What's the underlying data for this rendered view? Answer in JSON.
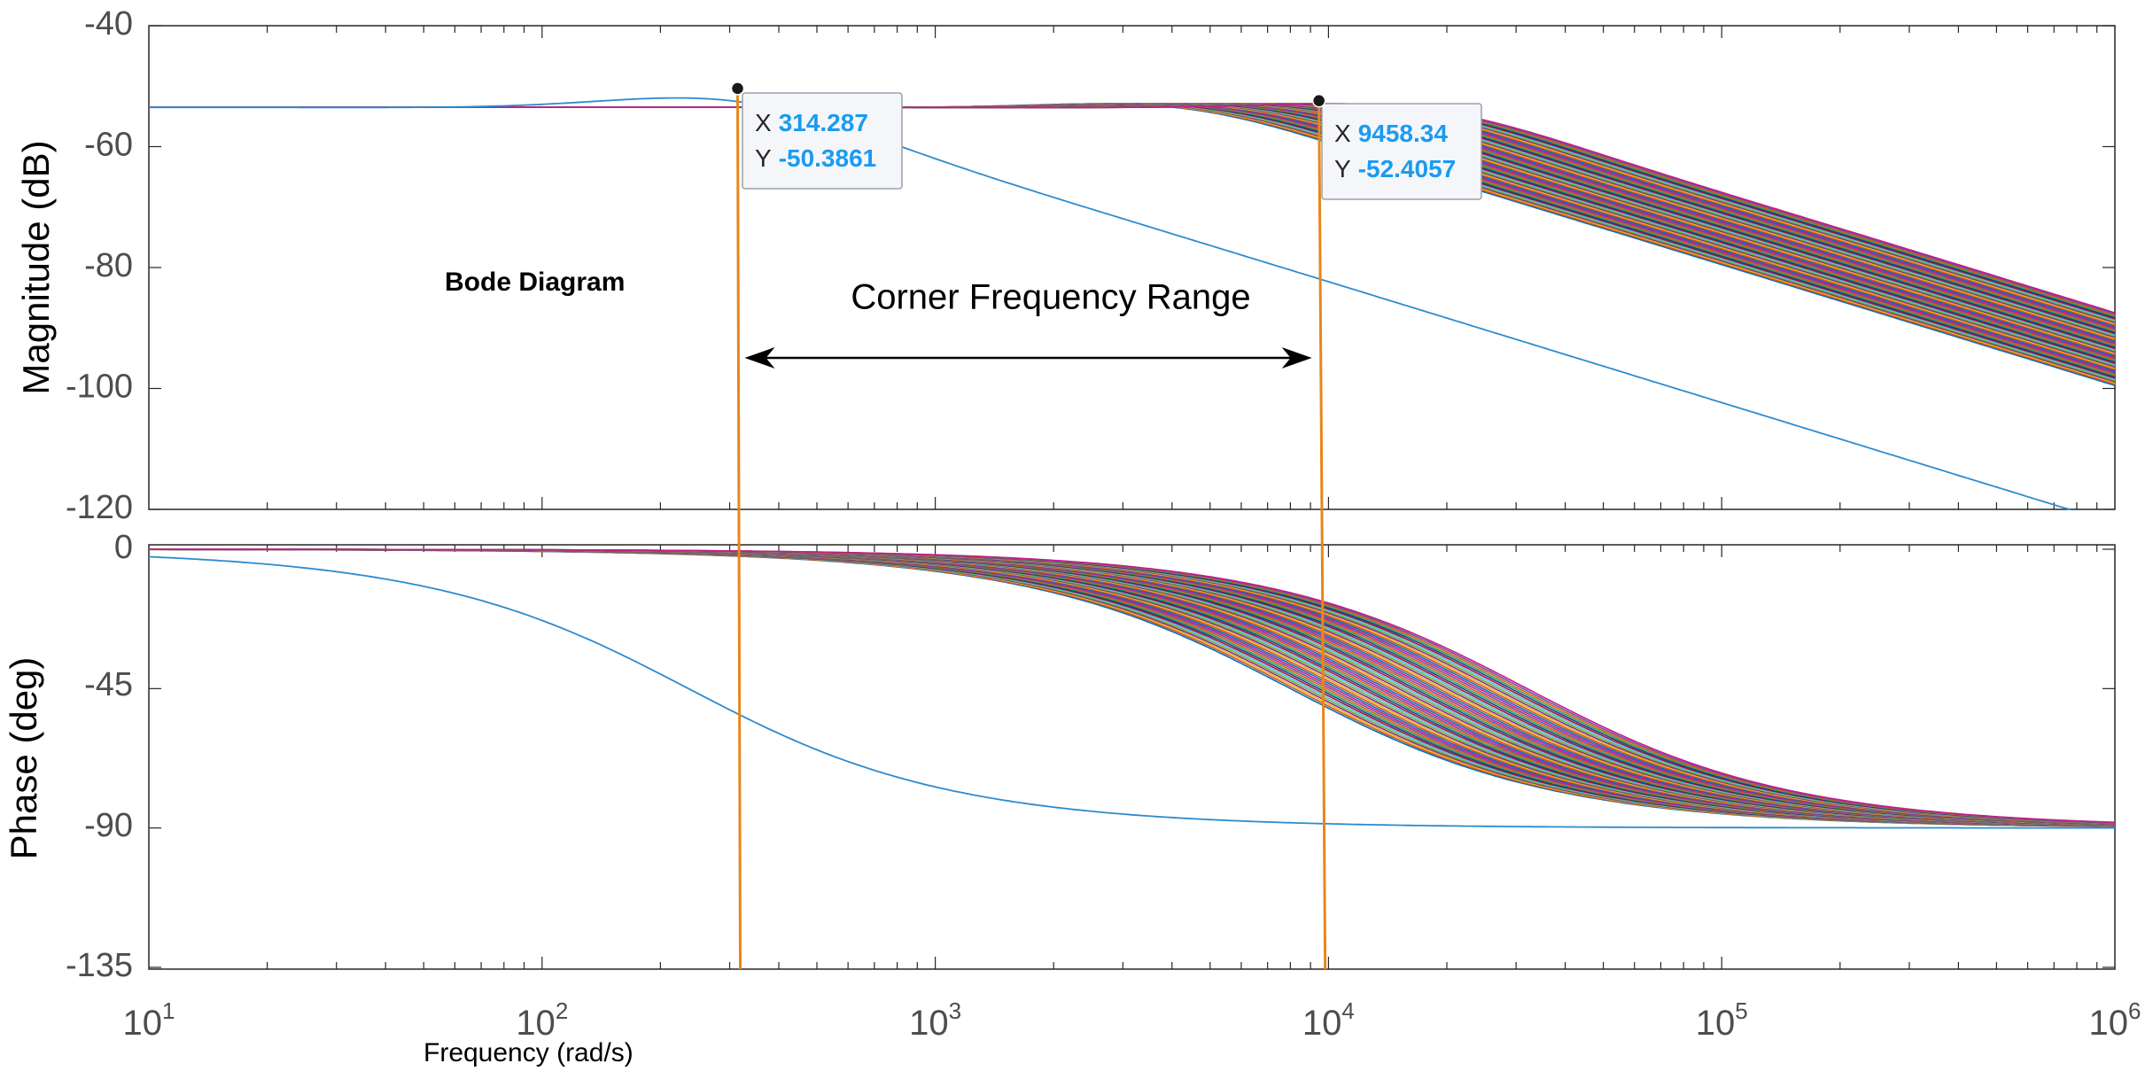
{
  "chart_data": {
    "type": "line",
    "title": "Bode Diagram",
    "xlabel": "Frequency  (rad/s)",
    "x_scale": "log",
    "xlim": [
      10,
      1000000
    ],
    "x_ticks": [
      {
        "base": "10",
        "exp": "1"
      },
      {
        "base": "10",
        "exp": "2"
      },
      {
        "base": "10",
        "exp": "3"
      },
      {
        "base": "10",
        "exp": "4"
      },
      {
        "base": "10",
        "exp": "5"
      },
      {
        "base": "10",
        "exp": "6"
      }
    ],
    "annotation": "Corner Frequency Range",
    "corner_range": [
      314.287,
      9458.34
    ],
    "magnitude": {
      "ylabel": "Magnitude (dB)",
      "ylim": [
        -120,
        -40
      ],
      "y_ticks": [
        "-40",
        "-60",
        "-80",
        "-100",
        "-120"
      ],
      "low_pass_series": {
        "dc_gain_db": -53.5,
        "corner_freq": 314.287,
        "peak_db": -50.3861,
        "peak_freq": 314.287,
        "rolloff_db_per_decade": -20
      },
      "family_series": {
        "count": 60,
        "dc_gain_db": -53.5,
        "corner_freq_range": [
          5000,
          20000
        ],
        "peak_db": -52.4057,
        "peak_freq": 9458.34,
        "rolloff_db_per_decade": -20
      }
    },
    "phase": {
      "ylabel": "Phase (deg)",
      "ylim": [
        -135,
        0
      ],
      "y_ticks": [
        "0",
        "-45",
        "-90",
        "-135"
      ],
      "low_pass_series": {
        "start_deg": 0,
        "end_deg": -90,
        "corner_freq": 314.287
      },
      "family_series": {
        "count": 60,
        "start_deg": 0,
        "end_deg": -90,
        "corner_freq_range": [
          5000,
          20000
        ]
      }
    },
    "datatips": [
      {
        "x_key": "X",
        "x_value": "314.287",
        "y_key": "Y",
        "y_value": "-50.3861",
        "freq": 314.287,
        "mag_db": -50.3861
      },
      {
        "x_key": "X",
        "x_value": "9458.34",
        "y_key": "Y",
        "y_value": "-52.4057",
        "freq": 9458.34,
        "mag_db": -52.4057
      }
    ],
    "colors": {
      "low_pass": "#2b8bd0",
      "marker_line": "#e8861a",
      "family": [
        "#0072BD",
        "#D95319",
        "#EDB120",
        "#7E2F8E",
        "#77AC30",
        "#4DBEEE",
        "#A2142F",
        "#1f3c88",
        "#2ca25f",
        "#e6550d",
        "#6a51a3",
        "#c51b8a"
      ]
    }
  }
}
